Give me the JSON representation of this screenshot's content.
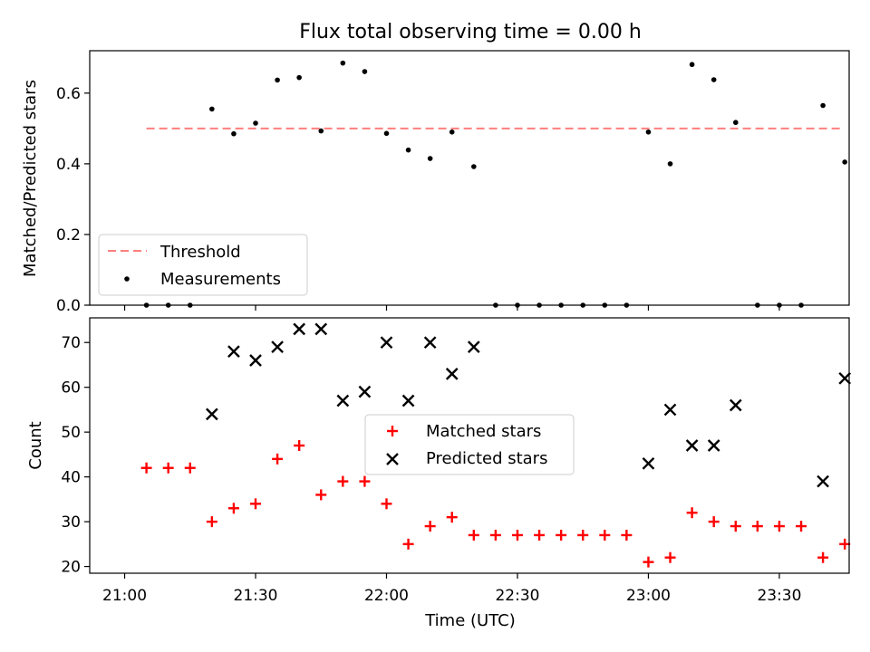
{
  "title": "Flux total observing time = 0.00 h",
  "chart_data": [
    {
      "type": "scatter",
      "panel": "top",
      "ylabel": "Matched/Predicted stars",
      "xlabel": "",
      "x_unit": "minutes since 21:00 (UTC)",
      "xlim": [
        -8,
        166
      ],
      "ylim": [
        0,
        0.72
      ],
      "yticks": [
        0.0,
        0.2,
        0.4,
        0.6
      ],
      "ytick_labels": [
        "0.0",
        "0.2",
        "0.4",
        "0.6"
      ],
      "xticks": [
        0,
        30,
        60,
        90,
        120,
        150
      ],
      "legend": {
        "placement": "lower-left",
        "entries": [
          "Threshold",
          "Measurements"
        ]
      },
      "threshold": {
        "name": "Threshold",
        "value": 0.5,
        "x_range": [
          5,
          164
        ],
        "color": "#ff7f7f",
        "style": "dashed"
      },
      "series": [
        {
          "name": "Measurements",
          "marker": "dot",
          "color": "#000000",
          "x": [
            5,
            10,
            15,
            20,
            25,
            30,
            35,
            40,
            45,
            50,
            55,
            60,
            65,
            70,
            75,
            80,
            85,
            90,
            95,
            100,
            105,
            110,
            115,
            120,
            125,
            130,
            135,
            140,
            145,
            150,
            155,
            160,
            165
          ],
          "y": [
            0.0,
            0.0,
            0.0,
            0.555,
            0.485,
            0.515,
            0.637,
            0.644,
            0.493,
            0.685,
            0.661,
            0.486,
            0.439,
            0.415,
            0.49,
            0.392,
            0.0,
            0.0,
            0.0,
            0.0,
            0.0,
            0.0,
            0.0,
            0.49,
            0.4,
            0.681,
            0.638,
            0.517,
            0.0,
            0.0,
            0.0,
            0.565,
            0.405
          ]
        }
      ]
    },
    {
      "type": "scatter",
      "panel": "bottom",
      "ylabel": "Count",
      "xlabel": "Time (UTC)",
      "x_unit": "minutes since 21:00 (UTC)",
      "xlim": [
        -8,
        166
      ],
      "ylim": [
        18.5,
        75.5
      ],
      "yticks": [
        20,
        30,
        40,
        50,
        60,
        70
      ],
      "ytick_labels": [
        "20",
        "30",
        "40",
        "50",
        "60",
        "70"
      ],
      "xticks": [
        0,
        30,
        60,
        90,
        120,
        150
      ],
      "xtick_labels": [
        "21:00",
        "21:30",
        "22:00",
        "22:30",
        "23:00",
        "23:30"
      ],
      "legend": {
        "placement": "center",
        "entries": [
          "Matched stars",
          "Predicted stars"
        ]
      },
      "series": [
        {
          "name": "Matched stars",
          "marker": "plus",
          "color": "#ff0000",
          "x": [
            5,
            10,
            15,
            20,
            25,
            30,
            35,
            40,
            45,
            50,
            55,
            60,
            65,
            70,
            75,
            80,
            85,
            90,
            95,
            100,
            105,
            110,
            115,
            120,
            125,
            130,
            135,
            140,
            145,
            150,
            155,
            160,
            165
          ],
          "y": [
            42,
            42,
            42,
            30,
            33,
            34,
            44,
            47,
            36,
            39,
            39,
            34,
            25,
            29,
            31,
            27,
            27,
            27,
            27,
            27,
            27,
            27,
            27,
            21,
            22,
            32,
            30,
            29,
            29,
            29,
            29,
            22,
            25
          ]
        },
        {
          "name": "Predicted stars",
          "marker": "x",
          "color": "#000000",
          "x": [
            20,
            25,
            30,
            35,
            40,
            45,
            50,
            55,
            60,
            65,
            70,
            75,
            80,
            120,
            125,
            130,
            135,
            140,
            160,
            165
          ],
          "y": [
            54,
            68,
            66,
            69,
            73,
            73,
            57,
            59,
            70,
            57,
            70,
            63,
            69,
            43,
            55,
            47,
            47,
            56,
            39,
            62
          ]
        }
      ]
    }
  ]
}
